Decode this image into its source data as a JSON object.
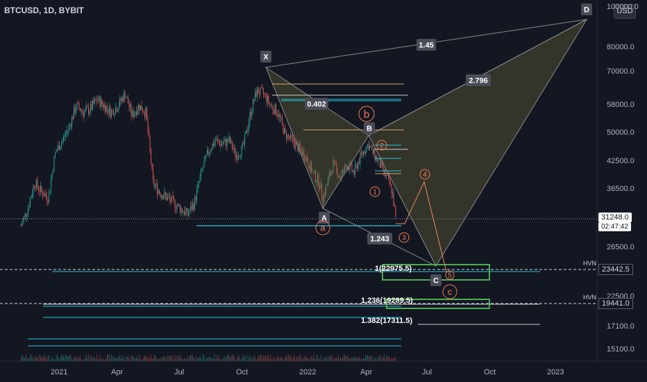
{
  "header": {
    "symbol_title": "BTCUSD, 1D, BYBIT",
    "currency_button": "USD"
  },
  "price_axis": {
    "labels": [
      {
        "text": "100000.0",
        "value": 100000
      },
      {
        "text": "80000.0",
        "value": 80000
      },
      {
        "text": "70000.0",
        "value": 70000
      },
      {
        "text": "58000.0",
        "value": 58000
      },
      {
        "text": "50000.0",
        "value": 50000
      },
      {
        "text": "42500.0",
        "value": 42500
      },
      {
        "text": "36500.0",
        "value": 36500
      },
      {
        "text": "26500.0",
        "value": 26500
      },
      {
        "text": "22500.0",
        "value": 22500
      },
      {
        "text": "17100.0",
        "value": 17100
      },
      {
        "text": "15100.0",
        "value": 15100
      }
    ],
    "current_price": "31248.0",
    "countdown": "02:47:42",
    "hvn_levels": [
      {
        "label": "HVN",
        "price": "23442.5"
      },
      {
        "label": "HVN",
        "price": "19441.0"
      }
    ]
  },
  "time_axis": {
    "labels": [
      "2021",
      "Apr",
      "Jul",
      "Oct",
      "2022",
      "Apr",
      "Jul",
      "Oct",
      "2023"
    ]
  },
  "harmonic": {
    "points": [
      "X",
      "A",
      "B",
      "C",
      "D"
    ],
    "ratios": [
      "1.45",
      "2.796",
      "0.402",
      "1.243"
    ]
  },
  "wave_labels": [
    "a",
    "b",
    "c",
    "1",
    "2",
    "3",
    "4",
    "5"
  ],
  "fib_labels": [
    "1(22975.5)",
    "1.236(19289.5)",
    "1.382(17311.5)"
  ],
  "colors": {
    "background": "#131722",
    "up": "#26a69a",
    "down": "#ef5350",
    "wave": "#f57c51",
    "box": "#4caf50",
    "harmonic_fill": "#6f6a3a"
  }
}
